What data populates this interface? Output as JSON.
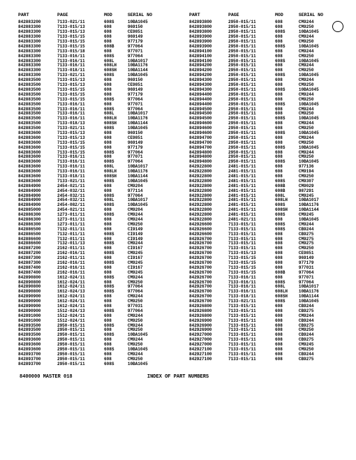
{
  "headers": [
    "PART",
    "PAGE",
    "MOD",
    "SERIAL NO"
  ],
  "footer_left": "8400000 MASTER 018",
  "footer_center": "INDEX OF PART NUMBERS",
  "col1": [
    [
      "842883200",
      "7133-021/11",
      "608S",
      "10BA1045"
    ],
    [
      "842883300",
      "7133-015/13",
      "608",
      "969150"
    ],
    [
      "842883300",
      "7133-015/13",
      "608",
      "CE9851"
    ],
    [
      "842883300",
      "7133-015/15",
      "608",
      "969149"
    ],
    [
      "842883300",
      "7133-015/15",
      "608",
      "977179"
    ],
    [
      "842883300",
      "7133-015/15",
      "608B",
      "977064"
    ],
    [
      "842883300",
      "7133-015/18",
      "608",
      "977071"
    ],
    [
      "842883300",
      "7133-016/11",
      "608S",
      "977064"
    ],
    [
      "842883300",
      "7133-016/11",
      "608L",
      "10BA1017"
    ],
    [
      "842883300",
      "7133-016/11",
      "608LH",
      "10BA1176"
    ],
    [
      "842883300",
      "7133-018/11",
      "608SH",
      "10BA1144"
    ],
    [
      "842883300",
      "7133-021/11",
      "608S",
      "10BA1045"
    ],
    [
      "842883500",
      "7133-015/13",
      "608",
      "969150"
    ],
    [
      "842883500",
      "7133-015/13",
      "608",
      "CE9851"
    ],
    [
      "842883500",
      "7133-015/15",
      "608",
      "969149"
    ],
    [
      "842883500",
      "7133-015/15",
      "608",
      "977179"
    ],
    [
      "842883500",
      "7133-015/15",
      "608S",
      "977064"
    ],
    [
      "842883500",
      "7133-016/11",
      "608",
      "977071"
    ],
    [
      "842883500",
      "7133-016/11",
      "608S",
      "977064"
    ],
    [
      "842883500",
      "7133-016/11",
      "608L",
      "10BA1017"
    ],
    [
      "842883500",
      "7133-016/11",
      "608LH",
      "10BA1176"
    ],
    [
      "842883500",
      "7133-018/13",
      "608SH",
      "10BA1144"
    ],
    [
      "842883500",
      "7133-021/11",
      "608S",
      "10BA1045"
    ],
    [
      "842883600",
      "7133-015/13",
      "608",
      "969150"
    ],
    [
      "842883600",
      "7133-015/13",
      "608",
      "CE9851"
    ],
    [
      "842883600",
      "7133-015/15",
      "608",
      "969149"
    ],
    [
      "842883600",
      "7133-015/15",
      "608",
      "977179"
    ],
    [
      "842883600",
      "7133-015/15",
      "608S",
      "977064"
    ],
    [
      "842883600",
      "7133-016/11",
      "608",
      "977071"
    ],
    [
      "842883600",
      "7133-016/11",
      "608S",
      "977064"
    ],
    [
      "842883600",
      "7133-016/11",
      "608L",
      "10BA1017"
    ],
    [
      "842883600",
      "7133-016/11",
      "608LH",
      "10BA1176"
    ],
    [
      "842883600",
      "7133-018/11",
      "608SH",
      "10BA1144"
    ],
    [
      "842883600",
      "7133-021/11",
      "608S",
      "10BA1045"
    ],
    [
      "842884900",
      "2454-021/11",
      "608",
      "CM9204"
    ],
    [
      "842884900",
      "2454-032/11",
      "608",
      "977114"
    ],
    [
      "842884900",
      "2454-032/11",
      "608S",
      "977064"
    ],
    [
      "842884900",
      "2454-032/11",
      "608L",
      "10BA1017"
    ],
    [
      "842884900",
      "2454-082/11",
      "608S",
      "10BA1045"
    ],
    [
      "842885000",
      "2454-021/11",
      "608",
      "CM9204"
    ],
    [
      "842886300",
      "1273-011/11",
      "608S",
      "CM9244"
    ],
    [
      "842886300",
      "1273-011/11",
      "608",
      "CM9244"
    ],
    [
      "842886300",
      "1273-011/11",
      "608",
      "CM9250"
    ],
    [
      "842886500",
      "7132-011/11",
      "608",
      "CI9149"
    ],
    [
      "842886500",
      "7132-011/11",
      "608S",
      "CI9149"
    ],
    [
      "842886600",
      "7132-011/11",
      "608",
      "CI9149"
    ],
    [
      "842886600",
      "7132-011/13",
      "608S",
      "CM9244"
    ],
    [
      "842887200",
      "2162-011/11",
      "608",
      "CI9167"
    ],
    [
      "842887200",
      "2162-016/11",
      "608S",
      "CM9245"
    ],
    [
      "842887300",
      "2162-011/11",
      "608",
      "CI9167"
    ],
    [
      "842887300",
      "2162-016/11",
      "608S",
      "CM9245"
    ],
    [
      "842887400",
      "2162-016/11",
      "608",
      "CI9167"
    ],
    [
      "842887400",
      "2162-016/11",
      "608",
      "CM9245"
    ],
    [
      "842890800",
      "1612-024/11",
      "608S",
      "CM9244"
    ],
    [
      "842890800",
      "1612-024/11",
      "608",
      "CM9250"
    ],
    [
      "842890800",
      "1612-024/11",
      "608S",
      "977064"
    ],
    [
      "842890800",
      "1612-024/13",
      "608S",
      "977064"
    ],
    [
      "842890900",
      "1612-024/11",
      "608",
      "CM9244"
    ],
    [
      "842890900",
      "1612-024/11",
      "608",
      "CM9250"
    ],
    [
      "842890900",
      "1612-024/11",
      "608",
      "977031"
    ],
    [
      "842890900",
      "1512-024/13",
      "608S",
      "977064"
    ],
    [
      "842891000",
      "1512-024/11",
      "608",
      "CM9244"
    ],
    [
      "842891000",
      "1512-024/11",
      "608",
      "CM9250"
    ],
    [
      "842893500",
      "2950-015/11",
      "608S",
      "CM9244"
    ],
    [
      "842893500",
      "2950-015/11",
      "608",
      "CM9250"
    ],
    [
      "842893500",
      "2950-015/11",
      "608S",
      "10BA1045"
    ],
    [
      "842893600",
      "2950-015/11",
      "608",
      "CM9244"
    ],
    [
      "842893600",
      "2950-015/11",
      "608",
      "CM9250"
    ],
    [
      "842893600",
      "2950-015/11",
      "608S",
      "10BA1045"
    ],
    [
      "842893700",
      "2950-015/11",
      "608",
      "CM9244"
    ],
    [
      "842893700",
      "2950-015/11",
      "608",
      "CM9250"
    ],
    [
      "842893700",
      "2950-015/11",
      "608S",
      "10BA1045"
    ]
  ],
  "col2": [
    [
      "842893800",
      "2950-015/11",
      "608",
      "CM9244"
    ],
    [
      "842893800",
      "2950-015/11",
      "608",
      "CM9250"
    ],
    [
      "842893800",
      "2950-015/11",
      "608S",
      "10BA1045"
    ],
    [
      "842893900",
      "2950-015/11",
      "608",
      "CM9244"
    ],
    [
      "842893900",
      "2950-015/11",
      "608",
      "CM9250"
    ],
    [
      "842893900",
      "2950-015/11",
      "608S",
      "10BA1045"
    ],
    [
      "842894100",
      "2950-015/11",
      "608",
      "CM9244"
    ],
    [
      "842894100",
      "2950-015/11",
      "608",
      "CM9250"
    ],
    [
      "842894100",
      "2950-015/11",
      "608S",
      "10BA1045"
    ],
    [
      "842894200",
      "2950-015/11",
      "608",
      "CM9244"
    ],
    [
      "842894200",
      "2950-015/11",
      "608",
      "CM9250"
    ],
    [
      "842894200",
      "2950-015/11",
      "608S",
      "10BA1045"
    ],
    [
      "842894300",
      "2950-015/11",
      "608",
      "CM9244"
    ],
    [
      "842894300",
      "2950-015/11",
      "608",
      "CM9250"
    ],
    [
      "842894300",
      "2950-015/11",
      "608S",
      "10BA1045"
    ],
    [
      "842894400",
      "2950-015/11",
      "608",
      "CM9244"
    ],
    [
      "842894400",
      "2950-015/11",
      "608",
      "CM9250"
    ],
    [
      "842894400",
      "2950-015/11",
      "608S",
      "10BA1045"
    ],
    [
      "842894500",
      "2950-015/11",
      "608",
      "CM9244"
    ],
    [
      "842894500",
      "2950-015/11",
      "608",
      "CM9250"
    ],
    [
      "842894500",
      "2950-015/11",
      "608S",
      "10BA1045"
    ],
    [
      "842894600",
      "2950-015/11",
      "608",
      "CM9244"
    ],
    [
      "842894600",
      "2950-015/11",
      "608",
      "CM9250"
    ],
    [
      "842894600",
      "2950-015/11",
      "608S",
      "10BA1045"
    ],
    [
      "842894700",
      "2950-015/11",
      "608",
      "CM9244"
    ],
    [
      "842894700",
      "2950-015/11",
      "608",
      "CM9250"
    ],
    [
      "842894700",
      "2950-015/11",
      "608S",
      "10BA1045"
    ],
    [
      "842894800",
      "2950-015/11",
      "608",
      "CM9244"
    ],
    [
      "842894800",
      "2950-015/11",
      "608",
      "CM9250"
    ],
    [
      "842894800",
      "2950-015/11",
      "608S",
      "10BA1045"
    ],
    [
      "842922800",
      "2481-015/11",
      "608",
      "977136"
    ],
    [
      "842922800",
      "2481-015/11",
      "608",
      "CM9194"
    ],
    [
      "842922800",
      "2481-015/11",
      "608",
      "CM9250"
    ],
    [
      "842922800",
      "2481-015/11",
      "608S",
      "CM9307"
    ],
    [
      "842922800",
      "2481-015/11",
      "608B",
      "CM9029"
    ],
    [
      "842922800",
      "2481-015/11",
      "608B",
      "987291"
    ],
    [
      "842922800",
      "2481-015/11",
      "608L",
      "CM9245"
    ],
    [
      "842922800",
      "2481-015/11",
      "608LH",
      "10BA1017"
    ],
    [
      "842922800",
      "2481-015/11",
      "608S",
      "10BA1176"
    ],
    [
      "842922800",
      "2481-015/11",
      "608SH",
      "10BA1144"
    ],
    [
      "842922800",
      "2481-015/11",
      "608S",
      "CM9245"
    ],
    [
      "842922800",
      "2481-021/11",
      "608",
      "10BA1045"
    ],
    [
      "842926600",
      "7133-015/11",
      "608S",
      "CM9244"
    ],
    [
      "842926600",
      "7133-015/11",
      "608S",
      "CB9244"
    ],
    [
      "842926600",
      "7133-015/11",
      "608",
      "CB9275"
    ],
    [
      "842926700",
      "7133-015/11",
      "608",
      "CM9275"
    ],
    [
      "842926700",
      "7133-015/11",
      "608",
      "CM9275"
    ],
    [
      "842926700",
      "7133-015/11",
      "608",
      "CM9250"
    ],
    [
      "842926700",
      "7133-015/13",
      "608",
      "CE9851"
    ],
    [
      "842926700",
      "7133-015/15",
      "608",
      "969149"
    ],
    [
      "842926700",
      "7133-015/15",
      "608",
      "977179"
    ],
    [
      "842926700",
      "7133-015/15",
      "608",
      "977031"
    ],
    [
      "842926700",
      "7133-015/15",
      "608B",
      "977064"
    ],
    [
      "842926700",
      "7133-016/11",
      "608",
      "977071"
    ],
    [
      "842926700",
      "7133-016/11",
      "608S",
      "977064"
    ],
    [
      "842926700",
      "7133-016/11",
      "608L",
      "10BA1017"
    ],
    [
      "842926700",
      "7133-016/11",
      "608LH",
      "10BA1176"
    ],
    [
      "842926700",
      "7133-018/11",
      "608SH",
      "10BA1144"
    ],
    [
      "842926700",
      "7133-021/11",
      "608S",
      "10BA1045"
    ],
    [
      "842926800",
      "7133-015/11",
      "608",
      "CB9244"
    ],
    [
      "842926800",
      "7133-015/11",
      "608",
      "CB9275"
    ],
    [
      "842926800",
      "7133-015/11",
      "608",
      "CM9244"
    ],
    [
      "842926900",
      "7133-015/11",
      "608",
      "CB9244"
    ],
    [
      "842926900",
      "7133-015/11",
      "608",
      "CB9275"
    ],
    [
      "842926900",
      "7133-015/11",
      "608",
      "CM9250"
    ],
    [
      "842927000",
      "7133-015/11",
      "608",
      "CB9244"
    ],
    [
      "842927000",
      "7133-015/11",
      "608",
      "CB9275"
    ],
    [
      "842927000",
      "7133-015/11",
      "608",
      "CM9245"
    ],
    [
      "842927100",
      "7133-015/11",
      "608",
      "CM9250"
    ],
    [
      "842927100",
      "7133-015/11",
      "608",
      "CB9244"
    ],
    [
      "842927100",
      "7133-015/11",
      "608",
      "CB9275"
    ]
  ]
}
